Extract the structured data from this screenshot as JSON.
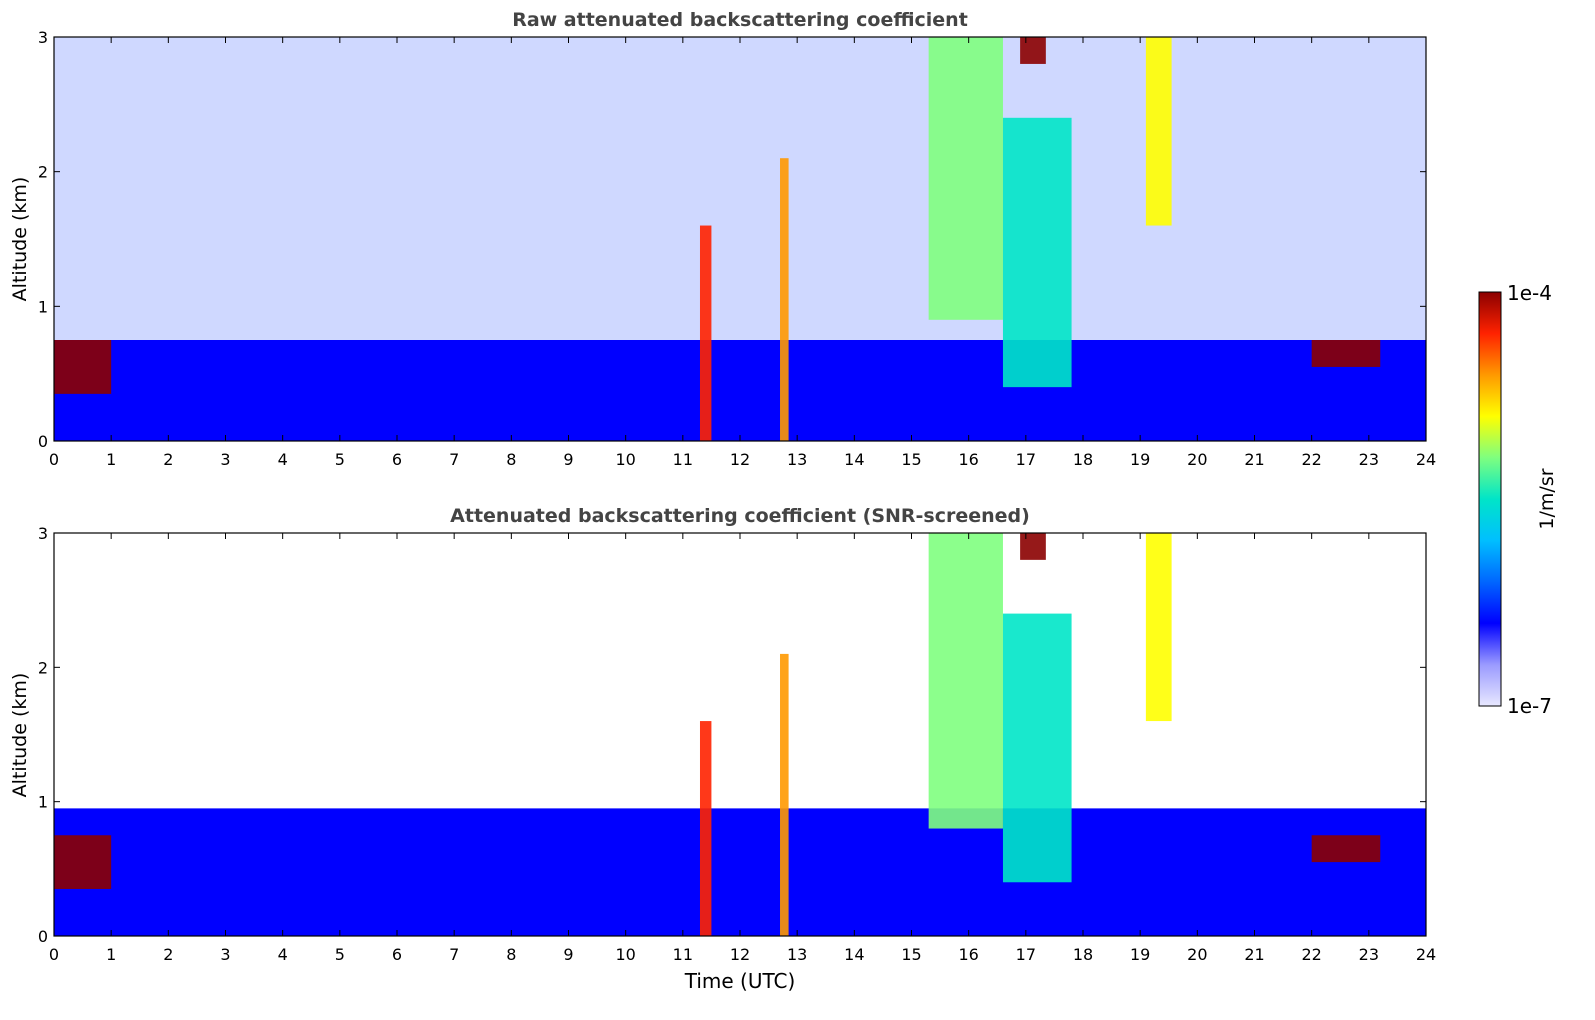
{
  "chart_data": [
    {
      "type": "heatmap",
      "title": "Raw attenuated backscattering coefficient",
      "xlabel": "",
      "ylabel": "Altitude (km)",
      "xlim": [
        0,
        24
      ],
      "ylim": [
        0,
        3
      ],
      "xticks": [
        "0",
        "1",
        "2",
        "3",
        "4",
        "5",
        "6",
        "7",
        "8",
        "9",
        "10",
        "11",
        "12",
        "13",
        "14",
        "15",
        "16",
        "17",
        "18",
        "19",
        "20",
        "21",
        "22",
        "23",
        "24"
      ],
      "yticks": [
        "0",
        "1",
        "2",
        "3"
      ],
      "features": [
        {
          "name": "aerosol layer",
          "t0": 0,
          "t1": 24,
          "top_km": 0.75,
          "level": 0.2
        },
        {
          "name": "cloud layer",
          "t0": 0,
          "t1": 1.0,
          "base_km": 0.35,
          "top_km": 0.75,
          "level": 1.0
        },
        {
          "name": "precipitation streak",
          "t0": 11.3,
          "t1": 11.5,
          "base_km": 0.0,
          "top_km": 1.6,
          "level": 0.9
        },
        {
          "name": "precipitation streak",
          "t0": 12.7,
          "t1": 12.85,
          "base_km": 0.0,
          "top_km": 2.1,
          "level": 0.75
        },
        {
          "name": "cirrus",
          "t0": 15.3,
          "t1": 16.6,
          "base_km": 0.9,
          "top_km": 3.0,
          "level": 0.55
        },
        {
          "name": "cirrus",
          "t0": 16.6,
          "t1": 17.8,
          "base_km": 0.4,
          "top_km": 2.4,
          "level": 0.45
        },
        {
          "name": "cloud top",
          "t0": 16.9,
          "t1": 17.35,
          "base_km": 2.8,
          "top_km": 3.0,
          "level": 1.0
        },
        {
          "name": "fall streak",
          "t0": 19.1,
          "t1": 19.55,
          "base_km": 1.6,
          "top_km": 3.0,
          "level": 0.72
        },
        {
          "name": "cloud layer",
          "t0": 22.0,
          "t1": 23.2,
          "base_km": 0.55,
          "top_km": 0.75,
          "level": 1.0
        }
      ]
    },
    {
      "type": "heatmap",
      "title": "Attenuated backscattering coefficient (SNR-screened)",
      "xlabel": "Time (UTC)",
      "ylabel": "Altitude (km)",
      "xlim": [
        0,
        24
      ],
      "ylim": [
        0,
        3
      ],
      "xticks": [
        "0",
        "1",
        "2",
        "3",
        "4",
        "5",
        "6",
        "7",
        "8",
        "9",
        "10",
        "11",
        "12",
        "13",
        "14",
        "15",
        "16",
        "17",
        "18",
        "19",
        "20",
        "21",
        "22",
        "23",
        "24"
      ],
      "yticks": [
        "0",
        "1",
        "2",
        "3"
      ],
      "features": [
        {
          "name": "aerosol layer",
          "t0": 0,
          "t1": 24,
          "top_km": 0.95,
          "level": 0.2
        },
        {
          "name": "cloud layer",
          "t0": 0,
          "t1": 1.0,
          "base_km": 0.35,
          "top_km": 0.75,
          "level": 1.0
        },
        {
          "name": "precipitation streak",
          "t0": 11.3,
          "t1": 11.5,
          "base_km": 0.0,
          "top_km": 1.6,
          "level": 0.9
        },
        {
          "name": "precipitation streak",
          "t0": 12.7,
          "t1": 12.85,
          "base_km": 0.0,
          "top_km": 2.1,
          "level": 0.75
        },
        {
          "name": "cirrus",
          "t0": 15.3,
          "t1": 16.6,
          "base_km": 0.8,
          "top_km": 3.0,
          "level": 0.55
        },
        {
          "name": "cirrus",
          "t0": 16.6,
          "t1": 17.8,
          "base_km": 0.4,
          "top_km": 2.4,
          "level": 0.45
        },
        {
          "name": "cloud top",
          "t0": 16.9,
          "t1": 17.35,
          "base_km": 2.8,
          "top_km": 3.0,
          "level": 1.0
        },
        {
          "name": "fall streak",
          "t0": 19.1,
          "t1": 19.55,
          "base_km": 1.6,
          "top_km": 3.0,
          "level": 0.72
        },
        {
          "name": "cloud layer",
          "t0": 22.0,
          "t1": 23.2,
          "base_km": 0.55,
          "top_km": 0.75,
          "level": 1.0
        }
      ]
    }
  ],
  "colorbar": {
    "label": "1/m/sr",
    "max_label": "1e-4",
    "min_label": "1e-7",
    "range": [
      1e-07,
      0.0001
    ],
    "scale": "log",
    "colors": [
      "#e8e8ff",
      "#9a9aff",
      "#0000ff",
      "#0066ff",
      "#00bfff",
      "#00e5c8",
      "#7fff7f",
      "#ffff00",
      "#ff9900",
      "#ff2200",
      "#8b0000"
    ]
  }
}
